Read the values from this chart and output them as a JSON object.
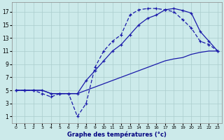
{
  "xlabel": "Graphe des températures (°c)",
  "background_color": "#cceaea",
  "grid_color": "#aacccc",
  "line_color": "#1a1aaa",
  "xlim": [
    -0.5,
    23.5
  ],
  "ylim": [
    0,
    18.5
  ],
  "xticks": [
    0,
    1,
    2,
    3,
    4,
    5,
    6,
    7,
    8,
    9,
    10,
    11,
    12,
    13,
    14,
    15,
    16,
    17,
    18,
    19,
    20,
    21,
    22,
    23
  ],
  "yticks": [
    1,
    3,
    5,
    7,
    9,
    11,
    13,
    15,
    17
  ],
  "line_jagged_x": [
    0,
    1,
    2,
    3,
    4,
    5,
    6,
    7,
    8,
    9,
    10,
    11,
    12,
    13,
    14,
    15,
    16,
    17,
    18,
    19,
    20,
    21,
    22,
    23
  ],
  "line_jagged_y": [
    5,
    5,
    5,
    4.5,
    4,
    4.5,
    4.5,
    1,
    3,
    8.5,
    11,
    12.5,
    13.5,
    16.5,
    17.3,
    17.5,
    17.5,
    17.3,
    17,
    15.8,
    14.5,
    12.5,
    12,
    11
  ],
  "line_top_x": [
    0,
    1,
    2,
    3,
    4,
    5,
    6,
    7,
    8,
    9,
    10,
    11,
    12,
    13,
    14,
    15,
    16,
    17,
    18,
    19,
    20,
    21,
    22,
    23
  ],
  "line_top_y": [
    5,
    5,
    5,
    5,
    4.5,
    4.5,
    4.5,
    4.5,
    6.5,
    8,
    9.5,
    11,
    12,
    13.5,
    15,
    16,
    16.5,
    17.3,
    17.5,
    17.2,
    16.8,
    14,
    12.5,
    11
  ],
  "line_bottom_x": [
    0,
    1,
    2,
    3,
    4,
    5,
    6,
    7,
    8,
    9,
    10,
    11,
    12,
    13,
    14,
    15,
    16,
    17,
    18,
    19,
    20,
    21,
    22,
    23
  ],
  "line_bottom_y": [
    5,
    5,
    5,
    5,
    4.5,
    4.5,
    4.5,
    4.5,
    5,
    5.5,
    6,
    6.5,
    7,
    7.5,
    8,
    8.5,
    9,
    9.5,
    9.8,
    10,
    10.5,
    10.8,
    11,
    11
  ]
}
